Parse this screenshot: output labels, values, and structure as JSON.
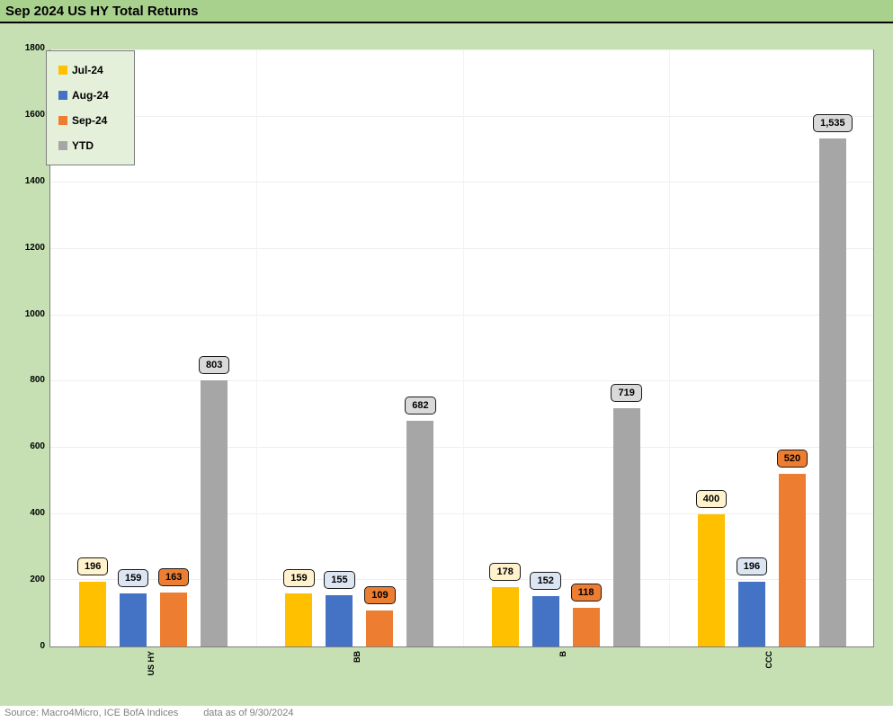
{
  "title": "Sep 2024 US HY Total Returns",
  "footer": {
    "source": "Source: Macro4Micro, ICE BofA Indices",
    "as_of": "data as of 9/30/2024"
  },
  "colors": {
    "title_bar_bg": "#A9D18E",
    "page_bg": "#C6E0B4",
    "legend_bg": "#E4F0DA",
    "plot_bg": "#FFFFFF",
    "border_gray": "#7F7F7F",
    "jul": "#FFC000",
    "aug": "#4472C4",
    "sep": "#ED7D31",
    "ytd": "#A6A6A6"
  },
  "chart_data": {
    "type": "bar",
    "title": "Sep 2024 US HY Total Returns",
    "categories": [
      "US HY",
      "BB",
      "B",
      "CCC"
    ],
    "series": [
      {
        "name": "Jul-24",
        "color": "#FFC000",
        "label_bg": "#FFF2CC",
        "label_fg": "#000000",
        "values": [
          196,
          159,
          178,
          400
        ]
      },
      {
        "name": "Aug-24",
        "color": "#4472C4",
        "label_bg": "#DCE6F2",
        "label_fg": "#000000",
        "values": [
          159,
          155,
          152,
          196
        ]
      },
      {
        "name": "Sep-24",
        "color": "#ED7D31",
        "label_bg": "#ED7D31",
        "label_fg": "#000000",
        "values": [
          163,
          109,
          118,
          520
        ]
      },
      {
        "name": "YTD",
        "color": "#A6A6A6",
        "label_bg": "#D9D9D9",
        "label_fg": "#000000",
        "values": [
          803,
          682,
          719,
          1535
        ]
      }
    ],
    "ylabel": "",
    "xlabel": "",
    "ylim": [
      0,
      1800
    ],
    "ytick_step": 200,
    "ytick_labels": [
      "0",
      "200",
      "400",
      "600",
      "800",
      "1000",
      "1200",
      "1400",
      "1600",
      "1800"
    ],
    "grid": true,
    "legend_position": "top-left",
    "data_labels": true,
    "data_label_format": "thousands-comma"
  }
}
